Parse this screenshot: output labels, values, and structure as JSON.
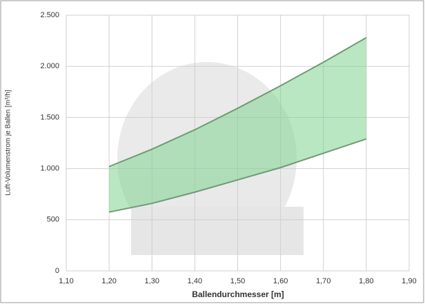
{
  "chart_data": {
    "type": "band",
    "x_label": "Ballendurchmesser [m]",
    "y_label": "Luft-Volumenstrom je Ballen [m³/h]",
    "x": [
      1.2,
      1.3,
      1.4,
      1.5,
      1.6,
      1.7,
      1.8
    ],
    "series": [
      {
        "color": "#6f9a72",
        "values": [
          575,
          660,
          770,
          890,
          1010,
          1150,
          1290
        ]
      },
      {
        "color": "#6f9a72",
        "values": [
          1020,
          1190,
          1380,
          1590,
          1810,
          2040,
          2280
        ]
      }
    ],
    "fill_color": "#7fd38f",
    "xlim": [
      1.1,
      1.9
    ],
    "xticks": [
      {
        "value": 1.1,
        "label": "1,10"
      },
      {
        "value": 1.2,
        "label": "1,20"
      },
      {
        "value": 1.3,
        "label": "1,30"
      },
      {
        "value": 1.4,
        "label": "1,40"
      },
      {
        "value": 1.5,
        "label": "1,50"
      },
      {
        "value": 1.6,
        "label": "1,60"
      },
      {
        "value": 1.7,
        "label": "1,70"
      },
      {
        "value": 1.8,
        "label": "1,80"
      },
      {
        "value": 1.9,
        "label": "1,90"
      }
    ],
    "ylim": [
      0,
      2500
    ],
    "yticks": [
      0,
      500,
      {
        "value": 1000,
        "label": "1.000"
      },
      {
        "value": 1500,
        "label": "1.500"
      },
      {
        "value": 2000,
        "label": "2.000"
      },
      {
        "value": 2500,
        "label": "2.500"
      }
    ],
    "grid": true
  }
}
